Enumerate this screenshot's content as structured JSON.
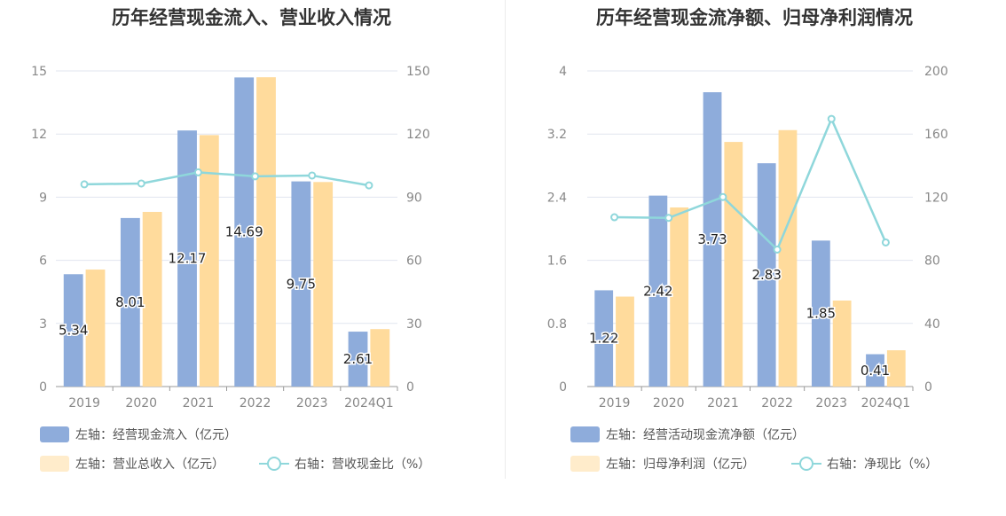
{
  "chart_data": [
    {
      "type": "bar",
      "title": "历年经营现金流入、营业收入情况",
      "categories": [
        "2019",
        "2020",
        "2021",
        "2022",
        "2023",
        "2024Q1"
      ],
      "y_left": {
        "ticks": [
          "0",
          "3",
          "6",
          "9",
          "12",
          "15"
        ],
        "min": 0,
        "max": 15
      },
      "y_right": {
        "ticks": [
          "0",
          "30",
          "60",
          "90",
          "120",
          "150"
        ],
        "min": 0,
        "max": 150
      },
      "grid": true,
      "series": [
        {
          "name": "左轴：经营现金流入（亿元）",
          "axis": "left",
          "type": "bar",
          "color": "#8eacdb",
          "values": [
            5.34,
            8.01,
            12.17,
            14.69,
            9.75,
            2.61
          ],
          "labels": [
            "5.34",
            "8.01",
            "12.17",
            "14.69",
            "9.75",
            "2.61"
          ]
        },
        {
          "name": "左轴：营业总收入（亿元）",
          "axis": "left",
          "type": "bar",
          "color": "#ffdb9c",
          "values": [
            5.56,
            8.3,
            11.95,
            14.7,
            9.72,
            2.73
          ]
        },
        {
          "name": "右轴：营收现金比（%）",
          "axis": "right",
          "type": "line",
          "color": "#8fd7db",
          "values": [
            96.1,
            96.5,
            101.8,
            99.9,
            100.3,
            95.6
          ]
        }
      ],
      "legend_placement": "bottom-left"
    },
    {
      "type": "bar",
      "title": "历年经营现金流净额、归母净利润情况",
      "categories": [
        "2019",
        "2020",
        "2021",
        "2022",
        "2023",
        "2024Q1"
      ],
      "y_left": {
        "ticks": [
          "0",
          "0.8",
          "1.6",
          "2.4",
          "3.2",
          "4"
        ],
        "min": 0,
        "max": 4
      },
      "y_right": {
        "ticks": [
          "0",
          "40",
          "80",
          "120",
          "160",
          "200"
        ],
        "min": 0,
        "max": 200
      },
      "grid": true,
      "series": [
        {
          "name": "左轴：经营活动现金流净额（亿元）",
          "axis": "left",
          "type": "bar",
          "color": "#8eacdb",
          "values": [
            1.22,
            2.42,
            3.73,
            2.83,
            1.85,
            0.41
          ],
          "labels": [
            "1.22",
            "2.42",
            "3.73",
            "2.83",
            "1.85",
            "0.41"
          ]
        },
        {
          "name": "左轴：归母净利润（亿元）",
          "axis": "left",
          "type": "bar",
          "color": "#ffdb9c",
          "values": [
            1.14,
            2.27,
            3.1,
            3.25,
            1.09,
            0.46
          ]
        },
        {
          "name": "右轴：净现比（%）",
          "axis": "right",
          "type": "line",
          "color": "#8fd7db",
          "values": [
            107.3,
            106.9,
            120.1,
            86.8,
            169.6,
            91.3
          ]
        }
      ],
      "legend_placement": "bottom-left"
    }
  ]
}
